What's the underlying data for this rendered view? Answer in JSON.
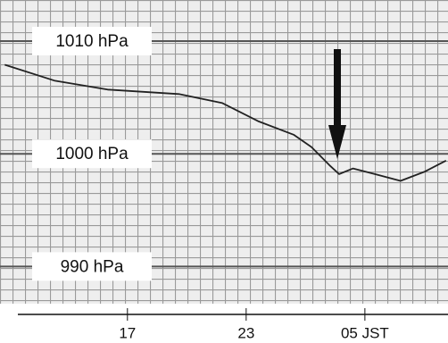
{
  "chart_data": {
    "type": "line",
    "x": [
      10.8,
      13.3,
      16.0,
      19.6,
      21.8,
      23.6,
      25.4,
      26.3,
      27.2,
      27.7,
      28.4,
      29.5,
      30.8,
      32.0,
      33.1
    ],
    "values": [
      1007.9,
      1006.5,
      1005.7,
      1005.3,
      1004.5,
      1002.9,
      1001.7,
      1000.6,
      999.0,
      998.2,
      998.7,
      998.2,
      997.6,
      998.4,
      999.4
    ],
    "color": "#222222",
    "xlim": [
      10.56,
      33.2
    ],
    "ylim": [
      986.7,
      1013.65
    ],
    "xticks": [
      17,
      23,
      {
        "value": 29,
        "label": "05 JST"
      }
    ],
    "yticks": [
      {
        "value": 990,
        "label": "990 hPa"
      },
      {
        "value": 1000,
        "label": "1000 hPa"
      },
      {
        "value": 1010,
        "label": "1010 hPa"
      }
    ]
  }
}
